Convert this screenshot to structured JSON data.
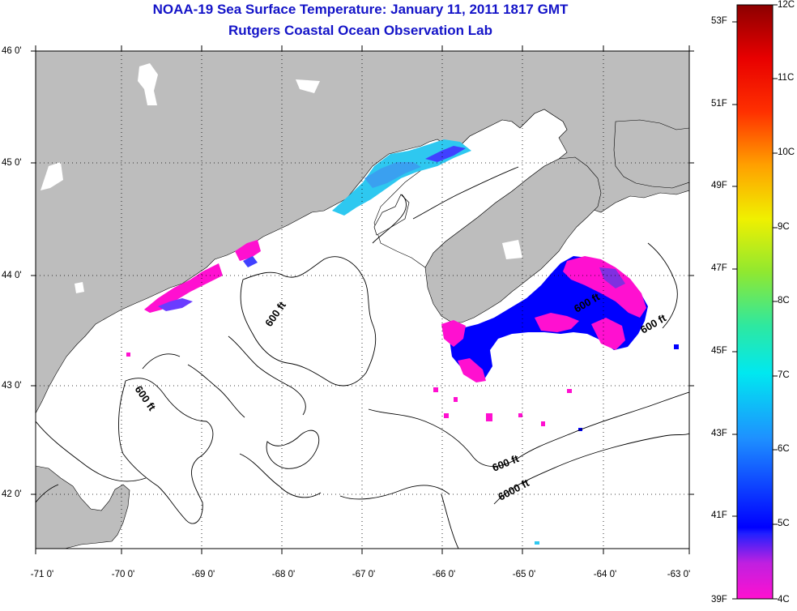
{
  "title": "NOAA-19 Sea Surface Temperature:  January 11, 2011 1817 GMT",
  "subtitle": "Rutgers Coastal Ocean Observation Lab",
  "latitude_ticks": [
    "46 0'",
    "45 0'",
    "44 0'",
    "43 0'",
    "42 0'"
  ],
  "longitude_ticks": [
    "-71 0'",
    "-70 0'",
    "-69 0'",
    "-68 0'",
    "-67 0'",
    "-66 0'",
    "-65 0'",
    "-64 0'",
    "-63 0'"
  ],
  "contour_labels": [
    "600 ft",
    "600 ft",
    "600 ft",
    "600 ft",
    "600 ft",
    "6000 ft"
  ],
  "colorbar": {
    "fahrenheit": [
      "53F",
      "51F",
      "49F",
      "47F",
      "45F",
      "43F",
      "41F",
      "39F"
    ],
    "celsius": [
      "12C",
      "11C",
      "10C",
      "9C",
      "8C",
      "7C",
      "6C",
      "5C",
      "4C"
    ]
  },
  "colors": {
    "title": "#1414c8",
    "land": "#bdbdbd",
    "ocean": "#ffffff",
    "sst_cold": "#ff10d0",
    "sst_mid": "#0000ff",
    "sst_warm": "#2ec8f0"
  }
}
